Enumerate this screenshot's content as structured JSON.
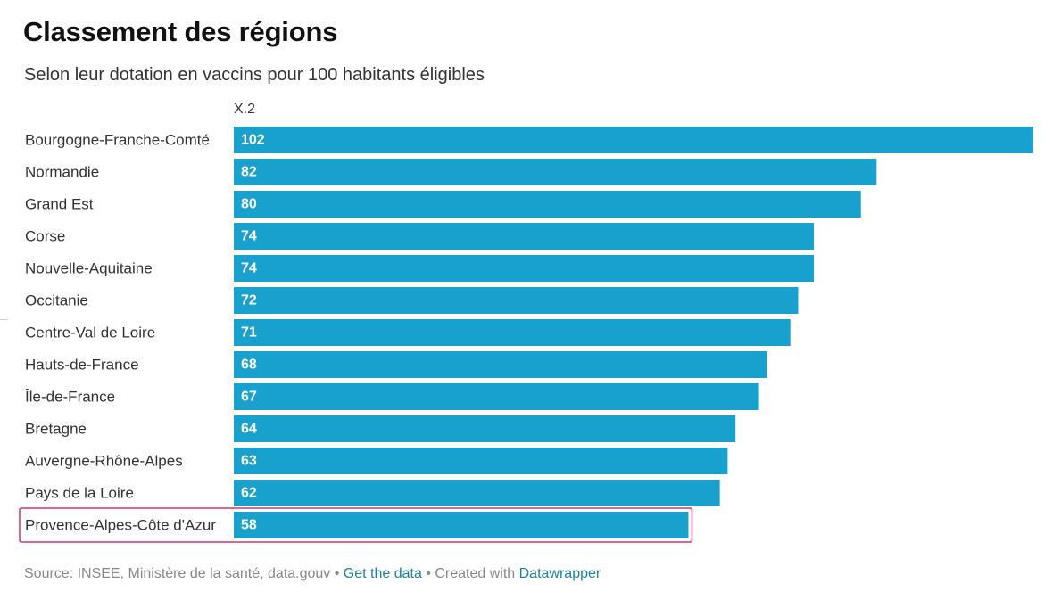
{
  "title": "Classement des régions",
  "subtitle": "Selon leur dotation en vaccins pour 100 habitants éligibles",
  "footer": {
    "source": "Source: INSEE, Ministère de la santé, data.gouv",
    "separator1": " • ",
    "get_data": "Get the data",
    "separator2": " • ",
    "created_with": "Created with ",
    "datawrapper": "Datawrapper"
  },
  "chart_data": {
    "type": "bar",
    "orientation": "horizontal",
    "column_header": "X.2",
    "categories": [
      "Bourgogne-Franche-Comté",
      "Normandie",
      "Grand Est",
      "Corse",
      "Nouvelle-Aquitaine",
      "Occitanie",
      "Centre-Val de Loire",
      "Hauts-de-France",
      "Île-de-France",
      "Bretagne",
      "Auvergne-Rhône-Alpes",
      "Pays de la Loire",
      "Provence-Alpes-Côte d'Azur"
    ],
    "values": [
      102,
      82,
      80,
      74,
      74,
      72,
      71,
      68,
      67,
      64,
      63,
      62,
      58
    ],
    "xlim": [
      0,
      102
    ],
    "highlighted": "Provence-Alpes-Côte d'Azur",
    "colors": {
      "bar": "#18a1cd",
      "highlight_border": "#d6336c",
      "value_label": "#ffffff"
    },
    "grid": false,
    "legend": "none"
  }
}
